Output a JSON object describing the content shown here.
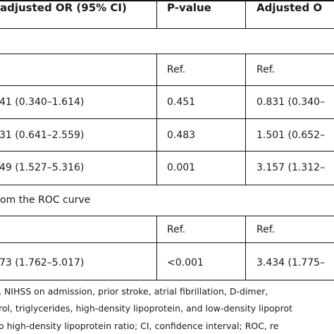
{
  "header": {
    "col1": "adjusted OR (95% CI)",
    "col2": "P-value",
    "col3": "Adjusted O"
  },
  "rows": [
    {
      "c1": "",
      "c2": "Ref.",
      "c3": "Ref."
    },
    {
      "c1": "41 (0.340–1.614)",
      "c2": "0.451",
      "c3": "0.831 (0.340–"
    },
    {
      "c1": "31 (0.641–2.559)",
      "c2": "0.483",
      "c3": "1.501 (0.652–"
    },
    {
      "c1": "49 (1.527–5.316)",
      "c2": "0.001",
      "c3": "3.157 (1.312–"
    }
  ],
  "section_label": "om the ROC curve",
  "rows2": [
    {
      "c1": "",
      "c2": "Ref.",
      "c3": "Ref."
    },
    {
      "c1": "73 (1.762–5.017)",
      "c2": "<0.001",
      "c3": "3.434 (1.775–"
    }
  ],
  "footnote": [
    ", NIHSS on admission, prior stroke, atrial fibrillation, D-dimer,",
    "rol, triglycerides, high-density lipoprotein, and low-density lipoprot",
    "o high-density lipoprotein ratio; CI, confidence interval; ROC, re"
  ]
}
